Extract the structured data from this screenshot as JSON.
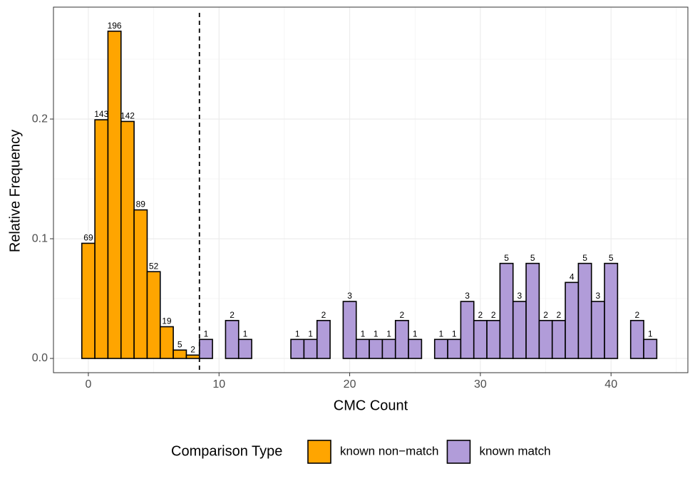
{
  "chart_data": {
    "type": "histogram",
    "x_label": "CMC Count",
    "y_label": "Relative Frequency",
    "legend_title": "Comparison Type",
    "xlim": [
      -2.67,
      45.88
    ],
    "ylim": [
      -0.0119,
      0.2935
    ],
    "xticks": [
      0,
      10,
      20,
      30,
      40
    ],
    "yticks": [
      {
        "value": 0,
        "label": "0.0"
      },
      {
        "value": 0.1,
        "label": "0.1"
      },
      {
        "value": 0.2,
        "label": "0.2"
      }
    ],
    "grid": true,
    "legend": "bottom",
    "vline": 8.5,
    "series": [
      {
        "name": "known non−match",
        "color": "#ffa500",
        "bins": [
          -0.5,
          0.5,
          1.5,
          2.5,
          3.5,
          4.5,
          5.5,
          6.5,
          7.5,
          8.5
        ],
        "values": [
          0.0962,
          0.1994,
          0.2734,
          0.198,
          0.1241,
          0.0725,
          0.0265,
          0.007,
          0.0028
        ],
        "counts": [
          69,
          143,
          196,
          142,
          89,
          52,
          19,
          5,
          2
        ]
      },
      {
        "name": "known match",
        "color": "#b19cd9",
        "bins": [
          8.5,
          9.5,
          10.5,
          11.5,
          12.5,
          13.5,
          14.5,
          15.5,
          16.5,
          17.5,
          18.5,
          19.5,
          20.5,
          21.5,
          22.5,
          23.5,
          24.5,
          25.5,
          26.5,
          27.5,
          28.5,
          29.5,
          30.5,
          31.5,
          32.5,
          33.5,
          34.5,
          35.5,
          36.5,
          37.5,
          38.5,
          39.5,
          40.5,
          41.5,
          42.5,
          43.5
        ],
        "values": [
          0.0159,
          0,
          0.0317,
          0.0159,
          0,
          0,
          0,
          0.0159,
          0.0159,
          0.0317,
          0,
          0.0476,
          0.0159,
          0.0159,
          0.0159,
          0.0317,
          0.0159,
          0,
          0.0159,
          0.0159,
          0.0476,
          0.0317,
          0.0317,
          0.0794,
          0.0476,
          0.0794,
          0.0317,
          0.0317,
          0.0635,
          0.0794,
          0.0476,
          0.0794,
          0,
          0.0317,
          0.0159
        ],
        "counts": [
          1,
          null,
          2,
          1,
          null,
          null,
          null,
          1,
          1,
          2,
          null,
          3,
          1,
          1,
          1,
          2,
          1,
          null,
          1,
          1,
          3,
          2,
          2,
          5,
          3,
          5,
          2,
          2,
          4,
          5,
          3,
          5,
          null,
          2,
          1
        ]
      }
    ]
  }
}
